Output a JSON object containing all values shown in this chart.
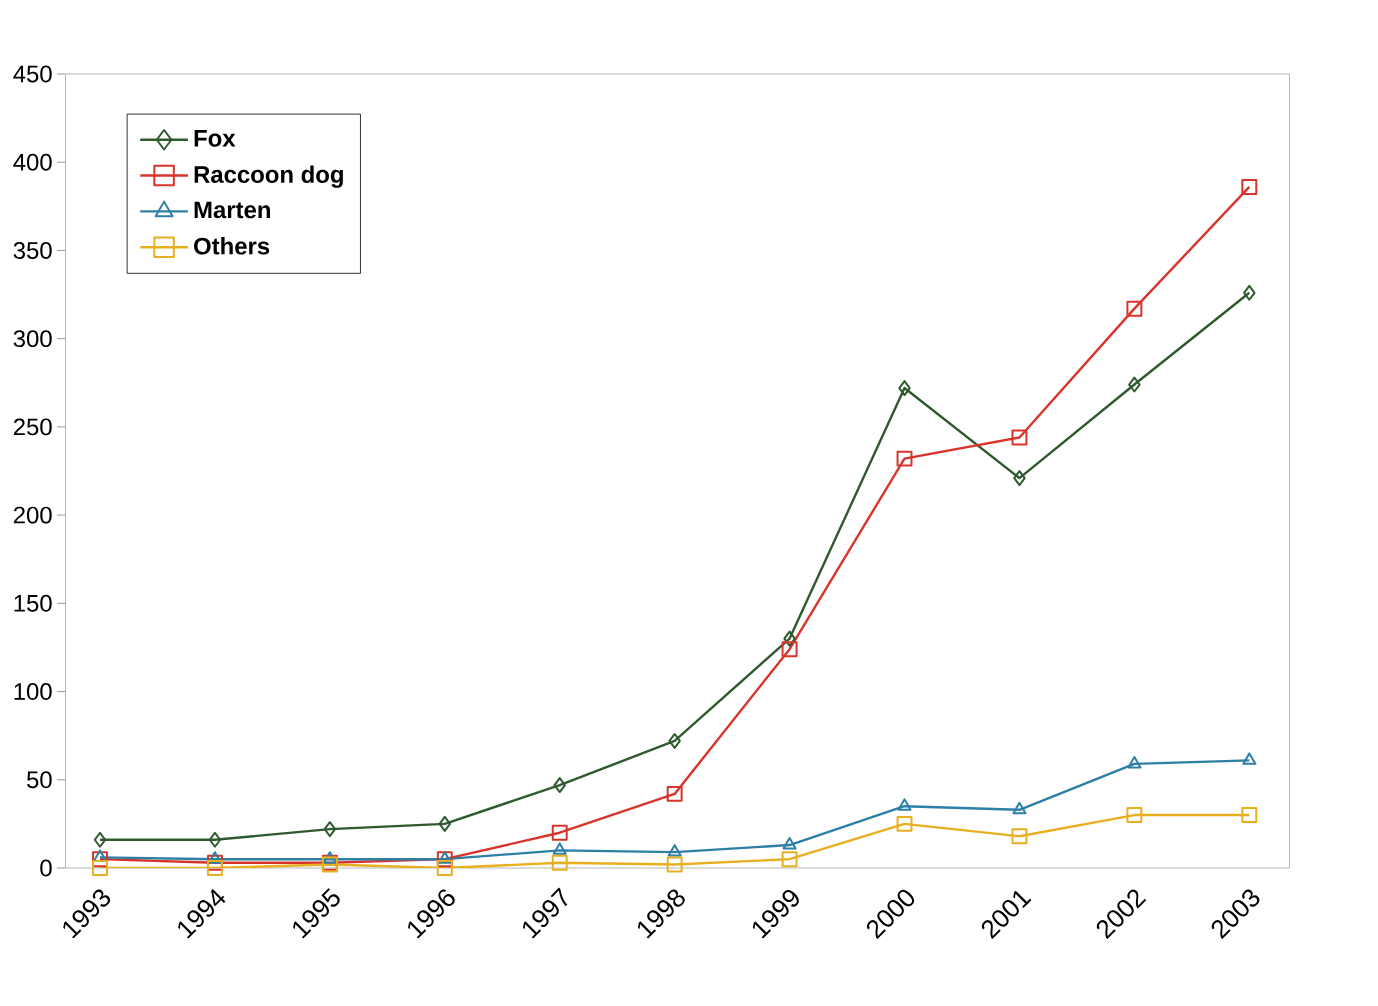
{
  "chart_data": {
    "type": "line",
    "categories": [
      "1993",
      "1994",
      "1995",
      "1996",
      "1997",
      "1998",
      "1999",
      "2000",
      "2001",
      "2002",
      "2003"
    ],
    "series": [
      {
        "name": "Fox",
        "color": "#2e5a2e",
        "marker": "diamond",
        "values": [
          16,
          16,
          22,
          25,
          47,
          72,
          130,
          272,
          221,
          274,
          326
        ]
      },
      {
        "name": "Raccoon dog",
        "color": "#d9342b",
        "marker": "square",
        "values": [
          5,
          3,
          3,
          5,
          20,
          42,
          124,
          232,
          244,
          317,
          386
        ]
      },
      {
        "name": "Marten",
        "color": "#2e7fa6",
        "marker": "triangle",
        "values": [
          6,
          5,
          5,
          5,
          10,
          9,
          13,
          35,
          33,
          59,
          61
        ]
      },
      {
        "name": "Others",
        "color": "#e8b020",
        "marker": "square",
        "values": [
          0,
          0,
          2,
          0,
          3,
          2,
          5,
          25,
          18,
          30,
          30
        ]
      }
    ],
    "ylim": [
      0,
      450
    ],
    "yticks": [
      0,
      50,
      100,
      150,
      200,
      250,
      300,
      350,
      400,
      450
    ],
    "grid": false,
    "legend": "top left",
    "line_style": "solid"
  }
}
